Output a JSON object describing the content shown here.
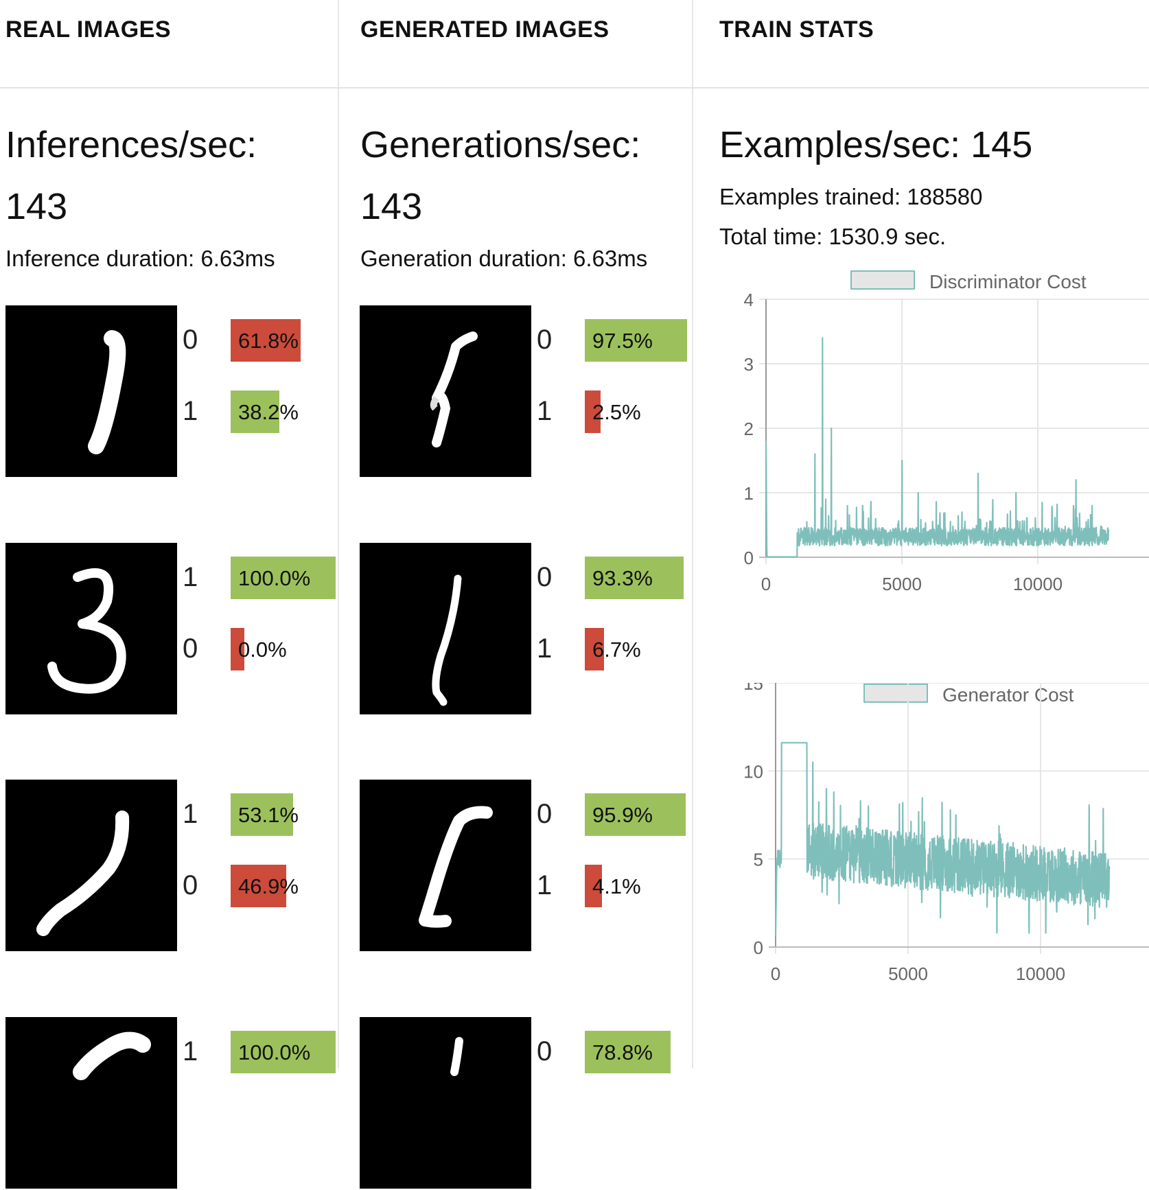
{
  "real": {
    "title": "REAL IMAGES",
    "rate_label": "Inferences/sec:",
    "rate_value": "143",
    "duration": "Inference duration: 6.63ms",
    "samples": [
      {
        "digit": "real-one-slanted",
        "preds": [
          {
            "cls": "0",
            "pct": "61.8%",
            "prob": 0.618,
            "color": "red"
          },
          {
            "cls": "1",
            "pct": "38.2%",
            "prob": 0.382,
            "color": "green"
          }
        ]
      },
      {
        "digit": "real-three",
        "preds": [
          {
            "cls": "1",
            "pct": "100.0%",
            "prob": 1.0,
            "color": "green"
          },
          {
            "cls": "0",
            "pct": "0.0%",
            "prob": 0.0,
            "color": "red"
          }
        ]
      },
      {
        "digit": "real-one-curved",
        "preds": [
          {
            "cls": "1",
            "pct": "53.1%",
            "prob": 0.531,
            "color": "green"
          },
          {
            "cls": "0",
            "pct": "46.9%",
            "prob": 0.469,
            "color": "red"
          }
        ]
      },
      {
        "digit": "real-partial",
        "preds": [
          {
            "cls": "1",
            "pct": "100.0%",
            "prob": 1.0,
            "color": "green"
          }
        ]
      }
    ]
  },
  "generated": {
    "title": "GENERATED IMAGES",
    "rate_label": "Generations/sec:",
    "rate_value": "143",
    "duration": "Generation duration: 6.63ms",
    "samples": [
      {
        "digit": "gen-one-noisy",
        "preds": [
          {
            "cls": "0",
            "pct": "97.5%",
            "prob": 0.975,
            "color": "green"
          },
          {
            "cls": "1",
            "pct": "2.5%",
            "prob": 0.025,
            "color": "red"
          }
        ]
      },
      {
        "digit": "gen-one-thin",
        "preds": [
          {
            "cls": "0",
            "pct": "93.3%",
            "prob": 0.933,
            "color": "green"
          },
          {
            "cls": "1",
            "pct": "6.7%",
            "prob": 0.067,
            "color": "red"
          }
        ]
      },
      {
        "digit": "gen-one-flag",
        "preds": [
          {
            "cls": "0",
            "pct": "95.9%",
            "prob": 0.959,
            "color": "green"
          },
          {
            "cls": "1",
            "pct": "4.1%",
            "prob": 0.041,
            "color": "red"
          }
        ]
      },
      {
        "digit": "gen-partial",
        "preds": [
          {
            "cls": "0",
            "pct": "78.8%",
            "prob": 0.788,
            "color": "green"
          }
        ]
      }
    ]
  },
  "stats": {
    "title": "TRAIN STATS",
    "examples_per_sec": "Examples/sec: 145",
    "examples_trained": "Examples trained: 188580",
    "total_time": "Total time: 1530.9 sec."
  },
  "colors": {
    "bar_green": "#9cc15c",
    "bar_red": "#cc4b3a",
    "line": "#7fbfbb",
    "legend_fill": "#e6e6e6",
    "grid": "#e6e6e6"
  },
  "chart_data": [
    {
      "type": "line",
      "title": "",
      "series": [
        {
          "name": "Discriminator Cost"
        }
      ],
      "xlabel": "",
      "ylabel": "",
      "xlim": [
        0,
        12600
      ],
      "ylim": [
        0,
        4
      ],
      "xticks": [
        "0",
        "5000",
        "10000"
      ],
      "yticks": [
        "0",
        "1",
        "2",
        "3",
        "4"
      ],
      "legend": "top",
      "grid": true,
      "spikes": [
        [
          0,
          1.8
        ],
        [
          1500,
          0.55
        ],
        [
          1800,
          1.6
        ],
        [
          2080,
          3.4
        ],
        [
          2200,
          0.9
        ],
        [
          2400,
          2.0
        ],
        [
          3000,
          0.8
        ],
        [
          5000,
          1.5
        ],
        [
          5600,
          1.0
        ],
        [
          7800,
          1.3
        ],
        [
          9200,
          1.0
        ],
        [
          11400,
          1.2
        ],
        [
          12000,
          0.8
        ]
      ]
    },
    {
      "type": "line",
      "title": "",
      "series": [
        {
          "name": "Generator Cost"
        }
      ],
      "xlabel": "",
      "ylabel": "",
      "xlim": [
        0,
        12600
      ],
      "ylim": [
        0,
        15
      ],
      "xticks": [
        "0",
        "5000",
        "10000"
      ],
      "yticks": [
        "0",
        "5",
        "10",
        "15"
      ],
      "legend": "top",
      "grid": true,
      "plateau": [
        [
          200,
          11.6
        ],
        [
          1150,
          11.6
        ]
      ],
      "spikes": [
        [
          1400,
          10.5
        ],
        [
          2200,
          8.8
        ],
        [
          3200,
          8.3
        ],
        [
          3500,
          8.0
        ],
        [
          4800,
          8.2
        ],
        [
          6800,
          7.5
        ]
      ]
    }
  ]
}
